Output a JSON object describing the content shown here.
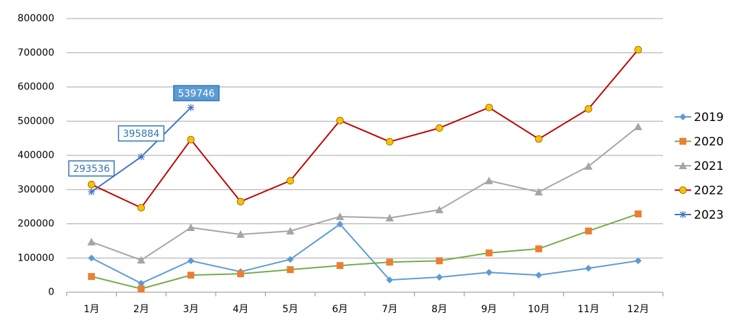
{
  "chart_data": {
    "type": "line",
    "categories": [
      "1月",
      "2月",
      "3月",
      "4月",
      "5月",
      "6月",
      "7月",
      "8月",
      "9月",
      "10月",
      "11月",
      "12月"
    ],
    "ylim": [
      0,
      800000
    ],
    "yticks": [
      0,
      100000,
      200000,
      300000,
      400000,
      500000,
      600000,
      700000,
      800000
    ],
    "grid": true,
    "legend": "right",
    "series": [
      {
        "name": "2019",
        "color": "#5b9bd5",
        "marker": "diamond",
        "marker_color": "#5b9bd5",
        "values": [
          100000,
          26000,
          92000,
          60000,
          96000,
          199000,
          36000,
          44000,
          58000,
          50000,
          70000,
          92000
        ]
      },
      {
        "name": "2020",
        "color": "#70ad47",
        "marker": "square",
        "marker_color": "#ed7d31",
        "values": [
          46000,
          10000,
          50000,
          54000,
          66000,
          78000,
          88000,
          92000,
          115000,
          127000,
          179000,
          229000
        ]
      },
      {
        "name": "2021",
        "color": "#a5a5a5",
        "marker": "triangle",
        "marker_color": "#a5a5a5",
        "values": [
          147000,
          94000,
          189000,
          169000,
          179000,
          221000,
          217000,
          241000,
          326000,
          293000,
          368000,
          484000
        ]
      },
      {
        "name": "2022",
        "color": "#c00000",
        "marker": "circle",
        "marker_color": "#ffc000",
        "values": [
          315000,
          247000,
          446000,
          265000,
          326000,
          502000,
          440000,
          480000,
          540000,
          448000,
          536000,
          709000
        ]
      },
      {
        "name": "2023",
        "color": "#4472c4",
        "marker": "star",
        "marker_color": "#4472c4",
        "data_labels": true,
        "values": [
          293536,
          395884,
          539746,
          null,
          null,
          null,
          null,
          null,
          null,
          null,
          null,
          null
        ]
      }
    ]
  }
}
